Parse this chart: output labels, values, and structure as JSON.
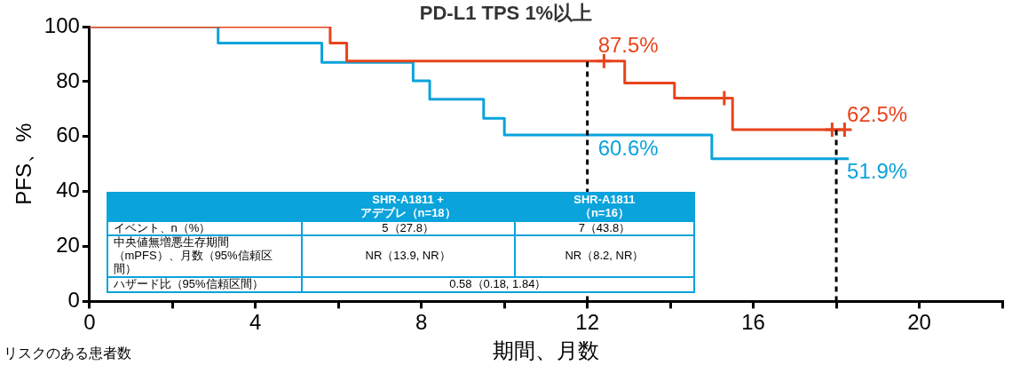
{
  "chart_data": {
    "type": "step",
    "title": "PD-L1 TPS 1%以上",
    "xlabel": "期間、月数",
    "ylabel": "PFS、%",
    "xlim": [
      0,
      22
    ],
    "ylim": [
      0,
      100
    ],
    "xticks": [
      0,
      {
        "value": 2,
        "label": null
      },
      4,
      {
        "value": 6,
        "label": null
      },
      8,
      {
        "value": 10,
        "label": null
      },
      12,
      {
        "value": 14,
        "label": null
      },
      16,
      {
        "value": 18,
        "label": null
      },
      20,
      {
        "value": 22,
        "label": null
      }
    ],
    "yticks": [
      0,
      20,
      40,
      60,
      80,
      100
    ],
    "series": [
      {
        "type": "step",
        "color": "#e8441c",
        "x": [
          0,
          5.8,
          6.2,
          12,
          12.9,
          14.1,
          15.5,
          18,
          18.2
        ],
        "values": [
          100,
          94,
          87.5,
          87.5,
          79.5,
          74,
          62.5,
          62.5,
          62.5
        ],
        "value_labels": [
          null,
          null,
          null,
          "87.5%",
          null,
          null,
          null,
          "62.5%",
          null
        ]
      },
      {
        "type": "step",
        "color": "#0aa3dc",
        "x": [
          0,
          3.1,
          5.6,
          7.8,
          8.2,
          9.5,
          10,
          12,
          15,
          18,
          18.3
        ],
        "values": [
          100,
          94,
          87,
          80.3,
          73.6,
          66.6,
          60.6,
          60.6,
          51.9,
          51.9,
          51.9
        ],
        "value_labels": [
          null,
          null,
          null,
          null,
          null,
          null,
          null,
          "60.6%",
          null,
          "51.9%",
          null
        ]
      },
      {
        "type": "scatter",
        "marker": "cross",
        "color": "#e8441c",
        "x": [
          12.4,
          15.3,
          17.9,
          18.2
        ],
        "values": [
          87.5,
          74,
          62.5,
          62.5
        ]
      }
    ],
    "ref_lines": [
      {
        "axis": "x",
        "value": 12,
        "color": "#000000",
        "line_style": "dashed"
      },
      {
        "axis": "x",
        "value": 18,
        "color": "#000000",
        "line_style": "dashed"
      }
    ],
    "annotations": [
      "SHR-A1811 +\nアデブレ（n=18）",
      "SHR-A1811\n（n=16）",
      "イベント、n（%）",
      "5（27.8）",
      "7（43.8）",
      "中央値無増悪生存期間（mPFS）、月数（95%信頼区間）",
      "NR（13.9, NR）",
      "NR（8.2, NR）",
      "ハザード比（95%信頼区間）",
      "0.58（0.18, 1.84）",
      "リスクのある患者数"
    ]
  }
}
